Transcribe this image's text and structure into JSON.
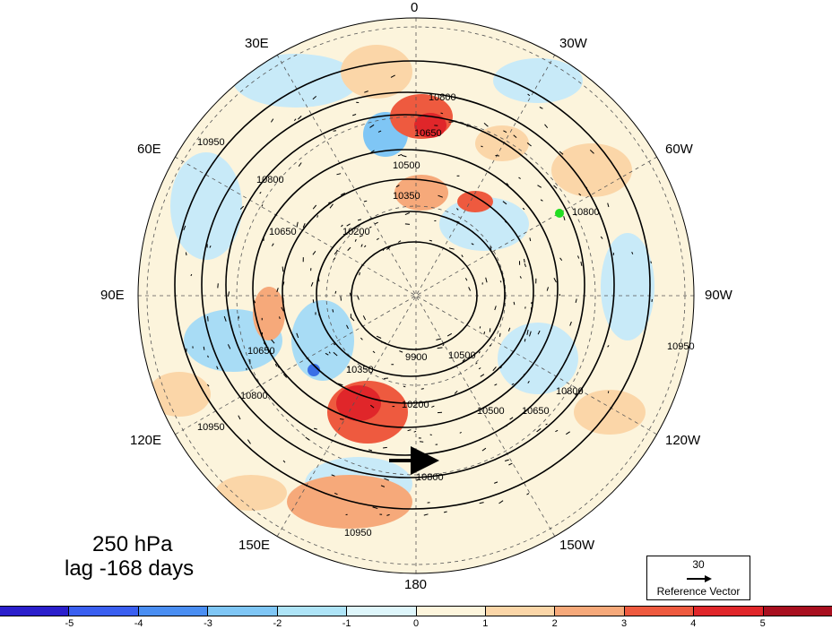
{
  "title": {
    "line1": "250 hPa",
    "line2": "lag -168 days"
  },
  "longitude_labels": {
    "lon_0": "0",
    "lon_30w": "30W",
    "lon_60w": "60W",
    "lon_90w": "90W",
    "lon_120w": "120W",
    "lon_150w": "150W",
    "lon_180": "180",
    "lon_150e": "150E",
    "lon_120e": "120E",
    "lon_90e": "90E",
    "lon_60e": "60E",
    "lon_30e": "30E"
  },
  "contour_labels": [
    "10800",
    "10650",
    "10500",
    "10350",
    "10200",
    "10950",
    "9900"
  ],
  "reference_vector": {
    "value": "30",
    "label": "Reference Vector"
  },
  "colorbar": {
    "ticks": [
      "-5",
      "-4",
      "-3",
      "-2",
      "-1",
      "0",
      "1",
      "2",
      "3",
      "4",
      "5"
    ],
    "colors": [
      "#2b1fcc",
      "#3a5ff0",
      "#4a8ef2",
      "#7fc6f5",
      "#aee4f7",
      "#def6fb",
      "#fdf5dc",
      "#fbd6a8",
      "#f6a97a",
      "#ee5a3f",
      "#e0262a",
      "#a80f1f"
    ]
  },
  "markers": {
    "green_dot_color": "#22dd22",
    "blue_dot_color": "#3a6fe6"
  }
}
